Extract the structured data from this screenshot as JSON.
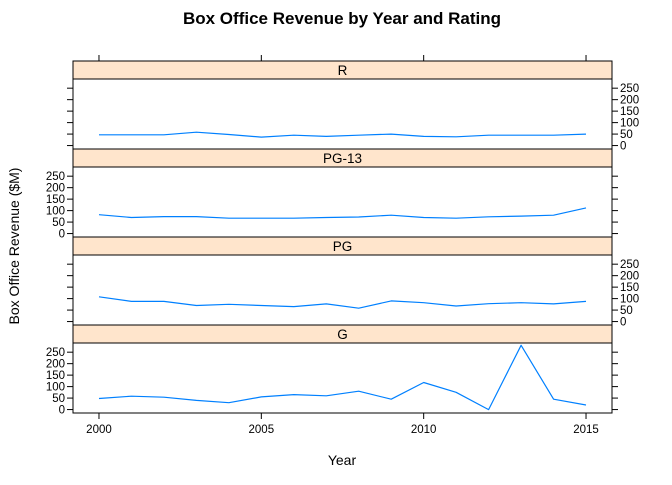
{
  "chart_data": {
    "type": "line",
    "title": "Box Office Revenue by Year and Rating",
    "xlabel": "Year",
    "ylabel": "Box Office Revenue ($M)",
    "x": [
      2000,
      2001,
      2002,
      2003,
      2004,
      2005,
      2006,
      2007,
      2008,
      2009,
      2010,
      2011,
      2012,
      2013,
      2014,
      2015
    ],
    "x_ticks": [
      "2000",
      "2005",
      "2010",
      "2015"
    ],
    "y_ticks": [
      "0",
      "50",
      "100",
      "150",
      "200",
      "250"
    ],
    "xlim": [
      1999.2,
      2015.8
    ],
    "ylim": [
      -15,
      290
    ],
    "grid": false,
    "panels": [
      {
        "strip": "R",
        "values": [
          47,
          47,
          47,
          58,
          48,
          37,
          45,
          40,
          45,
          50,
          40,
          38,
          45,
          45,
          45,
          50
        ]
      },
      {
        "strip": "PG-13",
        "values": [
          82,
          70,
          74,
          74,
          67,
          67,
          67,
          70,
          72,
          80,
          70,
          67,
          73,
          76,
          80,
          112
        ]
      },
      {
        "strip": "PG",
        "values": [
          108,
          88,
          88,
          70,
          75,
          70,
          65,
          77,
          58,
          90,
          82,
          68,
          78,
          82,
          77,
          88
        ]
      },
      {
        "strip": "G",
        "values": [
          48,
          58,
          54,
          40,
          30,
          55,
          65,
          60,
          80,
          45,
          118,
          75,
          0,
          280,
          45,
          20
        ]
      }
    ],
    "line_color": "#0080ff",
    "strip_color": "#ffe5cc"
  }
}
